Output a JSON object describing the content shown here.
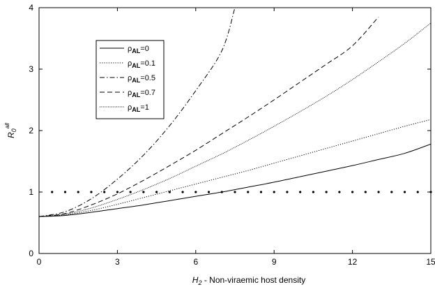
{
  "chart_data": {
    "type": "line",
    "title": "",
    "xlabel": {
      "var": "H",
      "sub": "2",
      "rest": " - Non-viraemic host density"
    },
    "ylabel": {
      "var": "R",
      "sub": "0",
      "sup": "all"
    },
    "xlim": [
      0,
      15
    ],
    "ylim": [
      0,
      4
    ],
    "xticks": [
      0,
      3,
      6,
      9,
      12,
      15
    ],
    "yticks": [
      0,
      1,
      2,
      3,
      4
    ],
    "grid": false,
    "legend_position": "upper-left",
    "series": [
      {
        "name": "ρAL=0",
        "label_base": "ρ",
        "label_sub": "AL",
        "label_val": "=0",
        "dash": "solid",
        "x": [
          0,
          1,
          2,
          3,
          4,
          5,
          6,
          7,
          8,
          9,
          10,
          11,
          12,
          13,
          14,
          15
        ],
        "y": [
          0.6,
          0.62,
          0.67,
          0.73,
          0.79,
          0.86,
          0.93,
          1.0,
          1.08,
          1.16,
          1.25,
          1.34,
          1.43,
          1.53,
          1.63,
          1.78
        ]
      },
      {
        "name": "ρAL=0.1",
        "label_base": "ρ",
        "label_sub": "AL",
        "label_val": "=0.1",
        "dash": "dot",
        "x": [
          0,
          1,
          2,
          3,
          4,
          5,
          6,
          7,
          8,
          9,
          10,
          11,
          12,
          13,
          14,
          15
        ],
        "y": [
          0.6,
          0.63,
          0.7,
          0.8,
          0.91,
          1.02,
          1.13,
          1.24,
          1.35,
          1.47,
          1.59,
          1.71,
          1.83,
          1.95,
          2.07,
          2.18
        ]
      },
      {
        "name": "ρAL=0.5",
        "label_base": "ρ",
        "label_sub": "AL",
        "label_val": "=0.5",
        "dash": "dashdot",
        "x": [
          0,
          1,
          2,
          3,
          4,
          5,
          6,
          7,
          7.5
        ],
        "y": [
          0.6,
          0.68,
          0.89,
          1.21,
          1.6,
          2.08,
          2.65,
          3.3,
          4.0
        ]
      },
      {
        "name": "ρAL=0.7",
        "label_base": "ρ",
        "label_sub": "AL",
        "label_val": "=0.7",
        "dash": "dash",
        "x": [
          0,
          1,
          2,
          3,
          4,
          5,
          6,
          7,
          8,
          9,
          10,
          11,
          12,
          13
        ],
        "y": [
          0.6,
          0.65,
          0.79,
          0.97,
          1.19,
          1.43,
          1.68,
          1.95,
          2.22,
          2.5,
          2.79,
          3.08,
          3.38,
          3.85
        ]
      },
      {
        "name": "ρAL=1",
        "label_base": "ρ",
        "label_sub": "AL",
        "label_val": "=1",
        "dash": "fine-dot",
        "x": [
          0,
          1,
          2,
          3,
          4,
          5,
          6,
          7,
          8,
          9,
          10,
          11,
          12,
          13,
          14,
          15
        ],
        "y": [
          0.6,
          0.64,
          0.74,
          0.88,
          1.04,
          1.22,
          1.42,
          1.62,
          1.84,
          2.07,
          2.31,
          2.56,
          2.83,
          3.12,
          3.42,
          3.75
        ]
      }
    ],
    "reference": {
      "style": "dotted-markers",
      "y": 1,
      "x": [
        0.5,
        1.0,
        1.5,
        2.0,
        2.5,
        3.0,
        3.5,
        4.0,
        4.5,
        5.0,
        5.5,
        6.0,
        6.5,
        7.0,
        7.5,
        8.0,
        8.5,
        9.0,
        9.5,
        10.0,
        10.5,
        11.0,
        11.5,
        12.0,
        12.5,
        13.0,
        13.5,
        14.0,
        14.5,
        15.0
      ]
    }
  }
}
